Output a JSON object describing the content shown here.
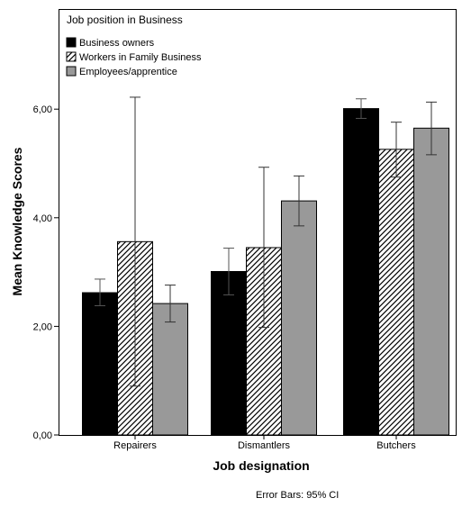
{
  "chart_data": {
    "type": "bar",
    "categories": [
      "Repairers",
      "Dismantlers",
      "Butchers"
    ],
    "series": [
      {
        "name": "Business owners",
        "fill": "#000000",
        "pattern": "solid",
        "values": [
          2.62,
          3.01,
          6.01
        ],
        "ci_lower": [
          2.38,
          2.58,
          5.83
        ],
        "ci_upper": [
          2.87,
          3.44,
          6.19
        ]
      },
      {
        "name": "Workers in Family Business",
        "fill": "#ffffff",
        "pattern": "diagonal-hatch",
        "values": [
          3.56,
          3.45,
          5.26
        ],
        "ci_lower": [
          0.9,
          1.98,
          4.75
        ],
        "ci_upper": [
          6.22,
          4.93,
          5.76
        ]
      },
      {
        "name": "Employees/apprentice",
        "fill": "#999999",
        "pattern": "solid",
        "values": [
          2.42,
          4.31,
          5.65
        ],
        "ci_lower": [
          2.08,
          3.85,
          5.16
        ],
        "ci_upper": [
          2.76,
          4.77,
          6.13
        ]
      }
    ],
    "xlabel": "Job designation",
    "ylabel": "Mean Knowledge Scores",
    "ylim": [
      0,
      7.2
    ],
    "yticks": [
      0,
      2,
      4,
      6
    ],
    "ytick_labels": [
      "0,00",
      "2,00",
      "4,00",
      "6,00"
    ],
    "legend_title": "Job position in Business",
    "legend_position": "top-left",
    "grid": false,
    "footnote": "Error Bars: 95% CI"
  }
}
